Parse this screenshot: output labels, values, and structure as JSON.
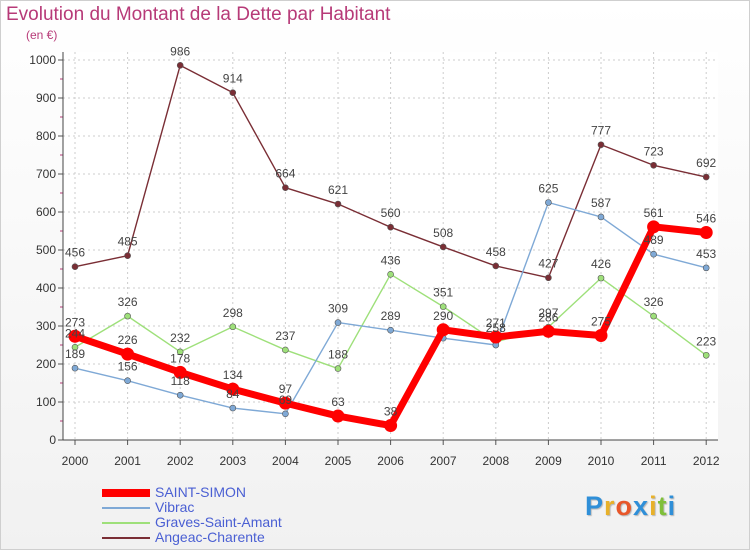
{
  "title": "Evolution du Montant de la Dette par Habitant",
  "subtitle": "(en €)",
  "brand": {
    "letters": [
      "P",
      "r",
      "o",
      "x",
      "i",
      "t",
      "i"
    ],
    "colors": [
      "#2f8fd8",
      "#e8b12a",
      "#e8572a",
      "#2f8fd8",
      "#e8b12a",
      "#7fbf3a",
      "#2f8fd8"
    ]
  },
  "chart_data": {
    "type": "line",
    "x": [
      "2000",
      "2001",
      "2002",
      "2003",
      "2004",
      "2005",
      "2006",
      "2007",
      "2008",
      "2009",
      "2010",
      "2011",
      "2012"
    ],
    "ylim": [
      0,
      1000
    ],
    "yticks": [
      "0",
      "100",
      "200",
      "300",
      "400",
      "500",
      "600",
      "700",
      "800",
      "900",
      "1000"
    ],
    "grid": true,
    "legend": "bottom-left",
    "series": [
      {
        "name": "Angeac-Charente",
        "color": "#7a2e35",
        "values": [
          456,
          485,
          986,
          914,
          664,
          621,
          560,
          508,
          458,
          427,
          777,
          723,
          692
        ],
        "labels": [
          "456",
          "485",
          "986",
          "914",
          "664",
          "621",
          "560",
          "508",
          "458",
          "427",
          "777",
          "723",
          "692"
        ]
      },
      {
        "name": "Graves-Saint-Amant",
        "color": "#9ee07a",
        "values": [
          244,
          326,
          232,
          298,
          237,
          188,
          436,
          351,
          258,
          297,
          426,
          326,
          223
        ],
        "labels": [
          "244",
          "326",
          "232",
          "298",
          "237",
          "188",
          "436",
          "351",
          "258",
          "297",
          "426",
          "326",
          "223"
        ]
      },
      {
        "name": "Vibrac",
        "color": "#7fa9d6",
        "values": [
          189,
          156,
          118,
          84,
          69,
          309,
          289,
          268,
          250,
          625,
          587,
          489,
          453
        ],
        "labels": [
          "189",
          "156",
          "118",
          "84",
          "69",
          "309",
          "289",
          "",
          "",
          "625",
          "587",
          "489",
          "453"
        ]
      },
      {
        "name": "SAINT-SIMON",
        "color": "#ff0000",
        "values": [
          273,
          226,
          178,
          134,
          97,
          63,
          38,
          290,
          271,
          286,
          275,
          561,
          546
        ],
        "labels": [
          "273",
          "226",
          "178",
          "134",
          "97",
          "63",
          "38",
          "290",
          "271",
          "286",
          "275",
          "561",
          "546"
        ]
      }
    ]
  },
  "legend_order": [
    "SAINT-SIMON",
    "Vibrac",
    "Graves-Saint-Amant",
    "Angeac-Charente"
  ]
}
